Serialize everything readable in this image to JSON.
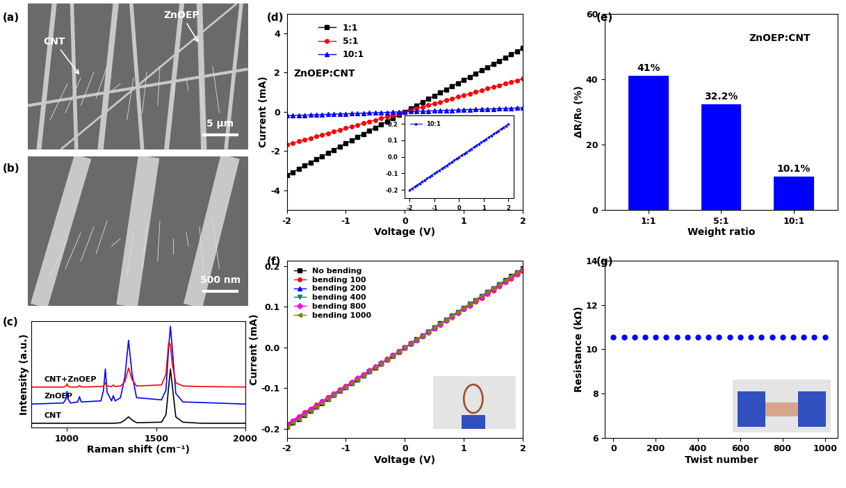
{
  "images": [
    {
      "panel_label": "(a)",
      "annotations": [
        "ZnOEP",
        "CNT"
      ],
      "scale_bar": "5 μm"
    },
    {
      "panel_label": "(b)",
      "scale_bar": "500 nm"
    }
  ],
  "chart_data": [
    {
      "panel_label": "(c)",
      "type": "line",
      "x_label": "Raman shift (cm⁻¹)",
      "y_label": "Intensity (a.u.)",
      "xlim": [
        800,
        2000
      ],
      "xticks": [
        1000,
        1500,
        2000
      ],
      "ylim": [
        0,
        1
      ],
      "tick_labels": "x",
      "x": [
        800,
        980,
        995,
        1000,
        1005,
        1020,
        1060,
        1070,
        1080,
        1190,
        1205,
        1215,
        1225,
        1250,
        1260,
        1270,
        1300,
        1325,
        1345,
        1365,
        1390,
        1530,
        1555,
        1570,
        1580,
        1590,
        1610,
        1650,
        1750,
        2000
      ],
      "series": [
        {
          "name": "CNT",
          "color": "#000000",
          "values": [
            0.04,
            0.04,
            0.04,
            0.04,
            0.04,
            0.04,
            0.04,
            0.04,
            0.04,
            0.04,
            0.04,
            0.04,
            0.04,
            0.04,
            0.04,
            0.04,
            0.045,
            0.07,
            0.1,
            0.07,
            0.045,
            0.05,
            0.12,
            0.38,
            0.55,
            0.4,
            0.1,
            0.05,
            0.04,
            0.04
          ]
        },
        {
          "name": "ZnOEP",
          "color": "#0000ff",
          "values": [
            0.22,
            0.23,
            0.27,
            0.34,
            0.27,
            0.23,
            0.24,
            0.29,
            0.24,
            0.25,
            0.35,
            0.55,
            0.33,
            0.25,
            0.3,
            0.25,
            0.28,
            0.48,
            0.82,
            0.5,
            0.28,
            0.26,
            0.35,
            0.75,
            0.95,
            0.75,
            0.32,
            0.24,
            0.235,
            0.22
          ]
        },
        {
          "name": "CNT+ZnOEP",
          "color": "#ff0000",
          "values": [
            0.38,
            0.38,
            0.39,
            0.41,
            0.39,
            0.38,
            0.38,
            0.395,
            0.38,
            0.385,
            0.39,
            0.42,
            0.39,
            0.385,
            0.4,
            0.385,
            0.39,
            0.43,
            0.56,
            0.45,
            0.39,
            0.4,
            0.5,
            0.8,
            0.78,
            0.6,
            0.42,
            0.39,
            0.385,
            0.38
          ]
        }
      ]
    },
    {
      "panel_label": "(d)",
      "type": "line",
      "annotation": "ZnOEP:CNT",
      "x_label": "Voltage (V)",
      "y_label": "Current (mA)",
      "xlim": [
        -2,
        2
      ],
      "xticks": [
        -2,
        -1,
        0,
        1,
        2
      ],
      "ylim": [
        -5,
        5
      ],
      "yticks": [
        -4,
        -2,
        0,
        2,
        4
      ],
      "legend": "upper left",
      "x": [
        -2.0,
        -1.9,
        -1.8,
        -1.7,
        -1.6,
        -1.5,
        -1.4,
        -1.3,
        -1.2,
        -1.1,
        -1.0,
        -0.9,
        -0.8,
        -0.7,
        -0.6,
        -0.5,
        -0.4,
        -0.3,
        -0.2,
        -0.1,
        0.0,
        0.1,
        0.2,
        0.3,
        0.4,
        0.5,
        0.6,
        0.7,
        0.8,
        0.9,
        1.0,
        1.1,
        1.2,
        1.3,
        1.4,
        1.5,
        1.6,
        1.7,
        1.8,
        1.9,
        2.0
      ],
      "series": [
        {
          "name": "1:1",
          "color": "#000000",
          "marker": "square",
          "values": [
            -3.24,
            -3.08,
            -2.92,
            -2.75,
            -2.59,
            -2.43,
            -2.27,
            -2.11,
            -1.94,
            -1.78,
            -1.62,
            -1.46,
            -1.3,
            -1.13,
            -0.97,
            -0.81,
            -0.65,
            -0.49,
            -0.32,
            -0.16,
            0,
            0.16,
            0.32,
            0.49,
            0.65,
            0.81,
            0.97,
            1.13,
            1.3,
            1.46,
            1.62,
            1.78,
            1.94,
            2.11,
            2.27,
            2.43,
            2.59,
            2.75,
            2.92,
            3.08,
            3.24
          ]
        },
        {
          "name": "5:1",
          "color": "#ff0000",
          "marker": "circle",
          "values": [
            -1.68,
            -1.6,
            -1.51,
            -1.43,
            -1.34,
            -1.26,
            -1.18,
            -1.09,
            -1.01,
            -0.92,
            -0.84,
            -0.76,
            -0.67,
            -0.59,
            -0.5,
            -0.42,
            -0.34,
            -0.25,
            -0.17,
            -0.08,
            0,
            0.08,
            0.17,
            0.25,
            0.34,
            0.42,
            0.5,
            0.59,
            0.67,
            0.76,
            0.84,
            0.92,
            1.01,
            1.09,
            1.18,
            1.26,
            1.34,
            1.43,
            1.51,
            1.6,
            1.68
          ]
        },
        {
          "name": "10:1",
          "color": "#0000ff",
          "marker": "triangle_up",
          "values": [
            -0.2,
            -0.19,
            -0.18,
            -0.17,
            -0.16,
            -0.15,
            -0.14,
            -0.13,
            -0.12,
            -0.11,
            -0.1,
            -0.09,
            -0.08,
            -0.07,
            -0.06,
            -0.05,
            -0.04,
            -0.03,
            -0.02,
            -0.01,
            0,
            0.01,
            0.02,
            0.03,
            0.04,
            0.05,
            0.06,
            0.07,
            0.08,
            0.09,
            0.1,
            0.11,
            0.12,
            0.13,
            0.14,
            0.15,
            0.16,
            0.17,
            0.18,
            0.19,
            0.2
          ]
        }
      ],
      "inset": {
        "series": "10:1",
        "xlim": [
          -2.2,
          2.2
        ],
        "xticks": [
          -2,
          -1,
          0,
          1,
          2
        ],
        "ylim": [
          -0.25,
          0.25
        ],
        "yticks": [
          -0.2,
          -0.1,
          {
            "value": 0,
            "label": "0.0"
          },
          0.1,
          0.2
        ],
        "legend": "upper left"
      }
    },
    {
      "panel_label": "(e)",
      "type": "bar",
      "annotation": "ZnOEP:CNT",
      "x_label": "Weight ratio",
      "y_label": "ΔR/R₀ (%)",
      "categories": [
        "1:1",
        "5:1",
        "10:1"
      ],
      "values": [
        41,
        32.2,
        10.1
      ],
      "value_labels": [
        "41%",
        "32.2%",
        "10.1%"
      ],
      "data_labels": true,
      "color": "#0000ff",
      "ylim": [
        0,
        60
      ],
      "yticks": [
        0,
        20,
        40,
        60
      ]
    },
    {
      "panel_label": "(f)",
      "type": "line",
      "x_label": "Voltage (V)",
      "y_label": "Current (mA)",
      "xlim": [
        -2,
        2
      ],
      "xticks": [
        -2,
        -1,
        0,
        1,
        2
      ],
      "ylim": [
        -0.222,
        0.214
      ],
      "yticks": [
        -0.2,
        -0.1,
        {
          "value": 0,
          "label": "0.0"
        },
        0.1,
        0.2
      ],
      "legend": "upper left",
      "x": [
        -2.0,
        -1.9,
        -1.8,
        -1.7,
        -1.6,
        -1.5,
        -1.4,
        -1.3,
        -1.2,
        -1.1,
        -1.0,
        -0.9,
        -0.8,
        -0.7,
        -0.6,
        -0.5,
        -0.4,
        -0.3,
        -0.2,
        -0.1,
        0.0,
        0.1,
        0.2,
        0.3,
        0.4,
        0.5,
        0.6,
        0.7,
        0.8,
        0.9,
        1.0,
        1.1,
        1.2,
        1.3,
        1.4,
        1.5,
        1.6,
        1.7,
        1.8,
        1.9,
        2.0
      ],
      "series": [
        {
          "name": "No bending",
          "color": "#000000",
          "marker": "square",
          "values": [
            -0.195,
            -0.185,
            -0.176,
            -0.166,
            -0.156,
            -0.146,
            -0.137,
            -0.127,
            -0.117,
            -0.107,
            -0.098,
            -0.088,
            -0.078,
            -0.068,
            -0.059,
            -0.049,
            -0.039,
            -0.029,
            -0.02,
            -0.01,
            0,
            0.01,
            0.02,
            0.029,
            0.039,
            0.049,
            0.059,
            0.068,
            0.078,
            0.088,
            0.098,
            0.107,
            0.117,
            0.127,
            0.137,
            0.146,
            0.156,
            0.166,
            0.176,
            0.185,
            0.195
          ]
        },
        {
          "name": "bending 100",
          "color": "#ff0000",
          "marker": "circle",
          "values": [
            -0.188,
            -0.179,
            -0.169,
            -0.16,
            -0.15,
            -0.141,
            -0.132,
            -0.122,
            -0.113,
            -0.103,
            -0.094,
            -0.085,
            -0.075,
            -0.066,
            -0.056,
            -0.047,
            -0.038,
            -0.028,
            -0.019,
            -0.009,
            0,
            0.009,
            0.019,
            0.028,
            0.038,
            0.047,
            0.056,
            0.066,
            0.075,
            0.085,
            0.094,
            0.103,
            0.113,
            0.122,
            0.132,
            0.141,
            0.15,
            0.16,
            0.169,
            0.179,
            0.188
          ]
        },
        {
          "name": "bending 200",
          "color": "#0000ff",
          "marker": "triangle_up",
          "values": [
            -0.193,
            -0.183,
            -0.174,
            -0.164,
            -0.154,
            -0.145,
            -0.135,
            -0.125,
            -0.116,
            -0.106,
            -0.097,
            -0.087,
            -0.077,
            -0.068,
            -0.058,
            -0.048,
            -0.039,
            -0.029,
            -0.019,
            -0.01,
            0,
            0.01,
            0.019,
            0.029,
            0.039,
            0.048,
            0.058,
            0.068,
            0.077,
            0.087,
            0.097,
            0.106,
            0.116,
            0.125,
            0.135,
            0.145,
            0.154,
            0.164,
            0.174,
            0.183,
            0.193
          ]
        },
        {
          "name": "bending 400",
          "color": "#008080",
          "marker": "triangle_down",
          "values": [
            -0.194,
            -0.184,
            -0.175,
            -0.165,
            -0.155,
            -0.146,
            -0.136,
            -0.126,
            -0.116,
            -0.107,
            -0.097,
            -0.087,
            -0.078,
            -0.068,
            -0.058,
            -0.049,
            -0.039,
            -0.029,
            -0.019,
            -0.01,
            0,
            0.01,
            0.019,
            0.029,
            0.039,
            0.049,
            0.058,
            0.068,
            0.078,
            0.087,
            0.097,
            0.107,
            0.116,
            0.126,
            0.136,
            0.146,
            0.155,
            0.165,
            0.175,
            0.184,
            0.194
          ]
        },
        {
          "name": "bending 800",
          "color": "#ff00ff",
          "marker": "diamond",
          "values": [
            -0.191,
            -0.181,
            -0.172,
            -0.162,
            -0.153,
            -0.143,
            -0.134,
            -0.124,
            -0.115,
            -0.105,
            -0.096,
            -0.086,
            -0.076,
            -0.067,
            -0.057,
            -0.048,
            -0.038,
            -0.029,
            -0.019,
            -0.01,
            0,
            0.01,
            0.019,
            0.029,
            0.038,
            0.048,
            0.057,
            0.067,
            0.076,
            0.086,
            0.096,
            0.105,
            0.115,
            0.124,
            0.134,
            0.143,
            0.153,
            0.162,
            0.172,
            0.181,
            0.191
          ]
        },
        {
          "name": "bending 1000",
          "color": "#808000",
          "marker": "triangle_left",
          "values": [
            -0.195,
            -0.185,
            -0.176,
            -0.166,
            -0.156,
            -0.146,
            -0.137,
            -0.127,
            -0.117,
            -0.107,
            -0.098,
            -0.088,
            -0.078,
            -0.068,
            -0.059,
            -0.049,
            -0.039,
            -0.029,
            -0.02,
            -0.01,
            0,
            0.01,
            0.02,
            0.029,
            0.039,
            0.049,
            0.059,
            0.068,
            0.078,
            0.088,
            0.098,
            0.107,
            0.117,
            0.127,
            0.137,
            0.146,
            0.156,
            0.166,
            0.176,
            0.185,
            0.195
          ]
        }
      ]
    },
    {
      "panel_label": "(g)",
      "type": "scatter",
      "x_label": "Twist number",
      "y_label": "Resistance (kΩ)",
      "xlim": [
        -40,
        1060
      ],
      "xticks": [
        0,
        200,
        400,
        600,
        800,
        1000
      ],
      "ylim": [
        6,
        14
      ],
      "yticks": [
        6,
        8,
        10,
        12,
        14
      ],
      "color": "#0000ff",
      "marker": "circle",
      "x": [
        0,
        50,
        100,
        150,
        200,
        250,
        300,
        350,
        400,
        450,
        500,
        550,
        600,
        650,
        700,
        750,
        800,
        850,
        900,
        950,
        1000
      ],
      "values": [
        10.55,
        10.55,
        10.55,
        10.55,
        10.55,
        10.55,
        10.55,
        10.55,
        10.55,
        10.55,
        10.55,
        10.55,
        10.55,
        10.55,
        10.55,
        10.55,
        10.55,
        10.55,
        10.55,
        10.55,
        10.55
      ]
    }
  ]
}
